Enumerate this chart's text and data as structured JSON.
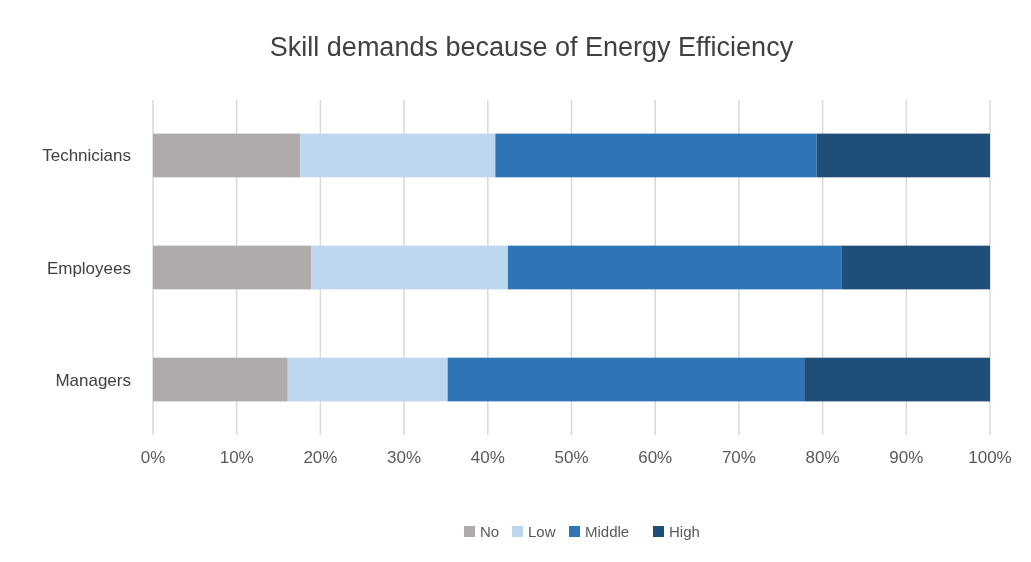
{
  "chart_data": {
    "type": "bar",
    "orientation": "horizontal",
    "stacked": true,
    "title": "Skill demands because of Energy Efficiency",
    "categories": [
      "Technicians",
      "Employees",
      "Managers"
    ],
    "series": [
      {
        "name": "No",
        "color": "#afabab",
        "values": [
          17.6,
          18.9,
          16.1
        ]
      },
      {
        "name": "Low",
        "color": "#bdd7ee",
        "values": [
          23.3,
          23.5,
          19.1
        ]
      },
      {
        "name": "Middle",
        "color": "#2e75b6",
        "values": [
          38.4,
          39.9,
          42.6
        ]
      },
      {
        "name": "High",
        "color": "#1f4e79",
        "values": [
          20.7,
          17.7,
          22.2
        ]
      }
    ],
    "xlim": [
      0,
      100
    ],
    "xticks": [
      {
        "value": 0,
        "label": "0%"
      },
      {
        "value": 10,
        "label": "10%"
      },
      {
        "value": 20,
        "label": "20%"
      },
      {
        "value": 30,
        "label": "30%"
      },
      {
        "value": 40,
        "label": "40%"
      },
      {
        "value": 50,
        "label": "50%"
      },
      {
        "value": 60,
        "label": "60%"
      },
      {
        "value": 70,
        "label": "70%"
      },
      {
        "value": 80,
        "label": "80%"
      },
      {
        "value": 90,
        "label": "90%"
      },
      {
        "value": 100,
        "label": "100%"
      }
    ],
    "grid": "x",
    "legend": "bottom"
  }
}
